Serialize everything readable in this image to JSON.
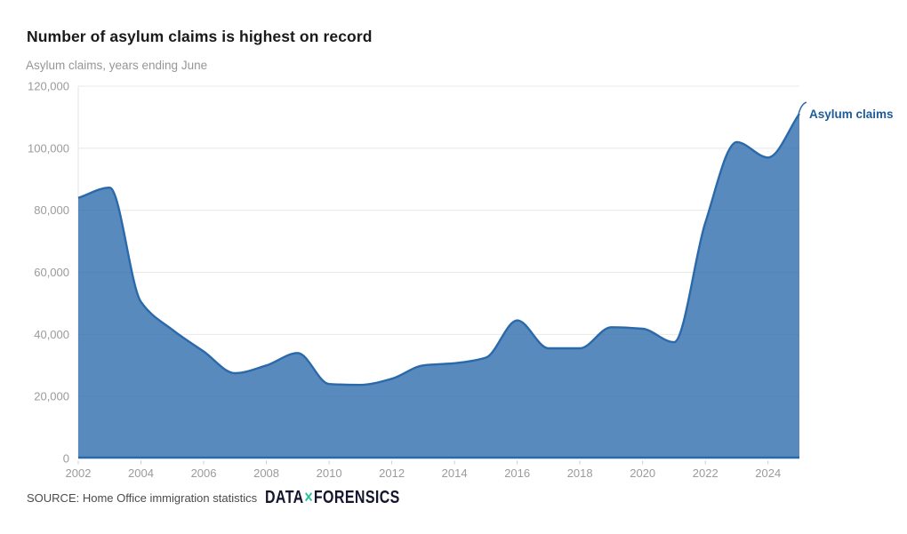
{
  "header": {
    "title": "Number of asylum claims is highest on record",
    "subtitle": "Asylum claims, years ending June"
  },
  "legend": {
    "series_label": "Asylum claims"
  },
  "source": {
    "label": "SOURCE: Home Office immigration statistics",
    "logo": {
      "data": "DATA",
      "x": "×",
      "forensics": "FORENSICS"
    }
  },
  "colors": {
    "line": "#2a69aa",
    "fill_opacity": 0.78,
    "series_label": "#1d5c99",
    "grid": "#e8e8e8",
    "axis_line": "#e3e3e3",
    "tick": "#cccccc",
    "axis_text": "#9b9b9b",
    "title": "#1a1a1a",
    "subtitle": "#969696",
    "source_text": "#4b4b4b",
    "logo_navy": "#15162e",
    "logo_teal": "#2ec19e"
  },
  "chart_data": {
    "type": "area",
    "title": "Number of asylum claims is highest on record",
    "subtitle": "Asylum claims, years ending June",
    "series_name": "Asylum claims",
    "x": [
      2002,
      2003,
      2004,
      2005,
      2006,
      2007,
      2008,
      2009,
      2010,
      2011,
      2012,
      2013,
      2014,
      2015,
      2016,
      2017,
      2018,
      2019,
      2020,
      2021,
      2022,
      2023,
      2024,
      2025
    ],
    "values": [
      84000,
      87300,
      50500,
      41500,
      34500,
      27500,
      30000,
      34000,
      24000,
      23700,
      25700,
      30000,
      30700,
      32500,
      44500,
      35500,
      35500,
      42300,
      41800,
      37500,
      76000,
      102000,
      97000,
      111084
    ],
    "ylim": [
      0,
      120000
    ],
    "yticks": [
      0,
      20000,
      40000,
      60000,
      80000,
      100000,
      120000
    ],
    "xticks": [
      2002,
      2004,
      2006,
      2008,
      2010,
      2012,
      2014,
      2016,
      2018,
      2020,
      2022,
      2024
    ],
    "grid": "horizontal",
    "legend_position": "end-of-line",
    "curve": "monotone"
  }
}
